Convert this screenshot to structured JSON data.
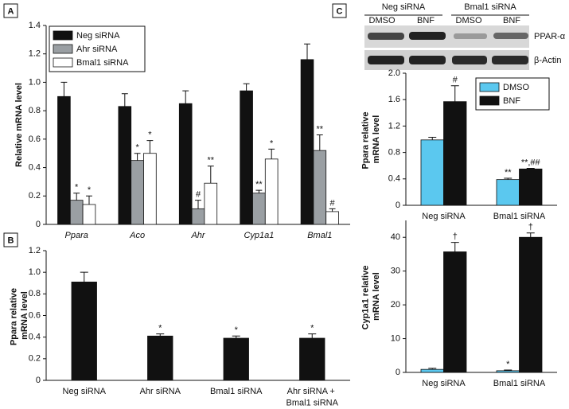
{
  "chart_data": [
    {
      "type": "bar",
      "panel": "A",
      "ylabel": "Relative mRNA level",
      "italic_categories": true,
      "categories": [
        "Ppara",
        "Aco",
        "Ahr",
        "Cyp1a1",
        "Bmal1"
      ],
      "series": [
        {
          "name": "Neg siRNA",
          "color": "#111111",
          "values": [
            0.9,
            0.83,
            0.85,
            0.94,
            1.16
          ],
          "errors": [
            0.1,
            0.09,
            0.09,
            0.05,
            0.11
          ],
          "annotations": [
            null,
            null,
            null,
            null,
            null
          ]
        },
        {
          "name": "Ahr siRNA",
          "color": "#9a9fa3",
          "values": [
            0.17,
            0.45,
            0.11,
            0.22,
            0.52
          ],
          "errors": [
            0.05,
            0.05,
            0.06,
            0.02,
            0.11
          ],
          "annotations": [
            "*",
            "*",
            "#",
            "**",
            "**"
          ]
        },
        {
          "name": "Bmal1 siRNA",
          "color": "#ffffff",
          "values": [
            0.14,
            0.5,
            0.29,
            0.46,
            0.09
          ],
          "errors": [
            0.06,
            0.09,
            0.12,
            0.07,
            0.02
          ],
          "annotations": [
            "*",
            "*",
            "**",
            "*",
            "#"
          ]
        }
      ],
      "ylim": [
        0,
        1.4
      ],
      "yticks": [
        0,
        0.2,
        0.4,
        0.6,
        0.8,
        {
          "value": 1,
          "label": "1.0"
        },
        1.2,
        1.4
      ],
      "legend": "upper left"
    },
    {
      "type": "bar",
      "panel": "B",
      "ylabel": "Ppara relative mRNA level",
      "categories": [
        "Neg siRNA",
        "Ahr siRNA",
        "Bmal1 siRNA",
        "Ahr siRNA + Bmal1 siRNA"
      ],
      "values": [
        0.91,
        0.41,
        0.39,
        0.39
      ],
      "errors": [
        0.09,
        0.02,
        0.02,
        0.04
      ],
      "annotations": [
        null,
        "*",
        "*",
        "*"
      ],
      "color": "#111111",
      "ylim": [
        0,
        1.2
      ],
      "yticks": [
        0,
        0.2,
        0.4,
        0.6,
        0.8,
        {
          "value": 1,
          "label": "1.0"
        },
        1.2
      ]
    },
    {
      "type": "bar",
      "panel": "C",
      "ylabel": "Ppara relative mRNA level",
      "categories": [
        "Neg siRNA",
        "Bmal1 siRNA"
      ],
      "series": [
        {
          "name": "DMSO",
          "color": "#5bc8ef",
          "values": [
            0.99,
            0.39
          ],
          "errors": [
            0.04,
            0.02
          ],
          "annotations": [
            null,
            "**"
          ]
        },
        {
          "name": "BNF",
          "color": "#111111",
          "values": [
            1.57,
            0.55
          ],
          "errors": [
            0.24,
            0.01
          ],
          "annotations": [
            "#",
            "**,##"
          ]
        }
      ],
      "ylim": [
        0,
        2.0
      ],
      "yticks": [
        0,
        0.4,
        0.8,
        1.2,
        1.6,
        {
          "value": 2,
          "label": "2.0"
        }
      ],
      "legend": "upper right"
    },
    {
      "type": "bar",
      "ylabel": "Cyp1a1 relative mRNA level",
      "categories": [
        "Neg siRNA",
        "Bmal1 siRNA"
      ],
      "series": [
        {
          "name": "DMSO",
          "color": "#5bc8ef",
          "values": [
            0.9,
            0.5
          ],
          "errors": [
            0.3,
            0.2
          ],
          "annotations": [
            null,
            "*"
          ]
        },
        {
          "name": "BNF",
          "color": "#111111",
          "values": [
            35.7,
            40.0
          ],
          "errors": [
            2.8,
            1.3
          ],
          "annotations": [
            "†",
            "†"
          ]
        }
      ],
      "ylim": [
        0,
        45
      ],
      "yticks": [
        0,
        10,
        20,
        30,
        40
      ]
    }
  ],
  "blot": {
    "groups": [
      "Neg siRNA",
      "Bmal1 siRNA"
    ],
    "lanes": [
      "DMSO",
      "BNF",
      "DMSO",
      "BNF"
    ],
    "bands": [
      "PPAR-α",
      "β-Actin"
    ]
  }
}
